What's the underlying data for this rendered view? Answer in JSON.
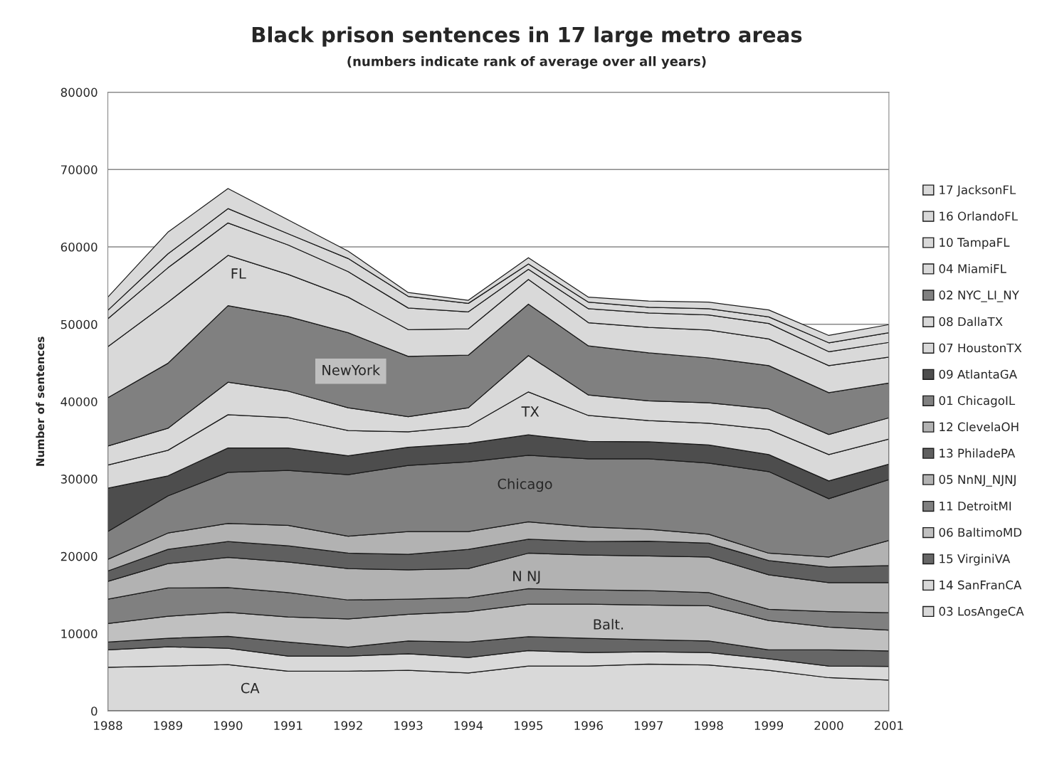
{
  "chart_data": {
    "type": "area",
    "stacked": true,
    "title": "Black prison sentences in 17 large metro areas",
    "subtitle": "(numbers indicate rank of average over all years)",
    "ylabel": "Number of sentences",
    "x": [
      1988,
      1989,
      1990,
      1991,
      1992,
      1993,
      1994,
      1995,
      1996,
      1997,
      1998,
      1999,
      2000,
      2001
    ],
    "xlim": [
      1988,
      2001
    ],
    "xticks": [
      1988,
      1989,
      1990,
      1991,
      1992,
      1993,
      1994,
      1995,
      1996,
      1997,
      1998,
      1999,
      2000,
      2001
    ],
    "ylim": [
      0,
      80000
    ],
    "yticks": [
      0,
      10000,
      20000,
      30000,
      40000,
      50000,
      60000,
      70000,
      80000
    ],
    "grid": "y",
    "legend": "right",
    "series": [
      {
        "name": "03 LosAngeCA",
        "color": "#d9d9d9",
        "values": [
          5650,
          5800,
          6000,
          5150,
          5150,
          5250,
          4900,
          5800,
          5800,
          6050,
          5950,
          5250,
          4300,
          4000
        ]
      },
      {
        "name": "14 SanFranCA",
        "color": "#d9d9d9",
        "values": [
          2250,
          2500,
          2100,
          1950,
          1950,
          2150,
          2000,
          2000,
          1750,
          1600,
          1600,
          1500,
          1500,
          1750
        ]
      },
      {
        "name": "15 VirginiVA",
        "color": "#666666",
        "values": [
          1000,
          1100,
          1550,
          1800,
          1150,
          1650,
          2000,
          1800,
          1850,
          1550,
          1500,
          1150,
          2100,
          2000
        ]
      },
      {
        "name": "06 BaltimoMD",
        "color": "#c0c0c0",
        "values": [
          2400,
          2850,
          3100,
          3250,
          3650,
          3450,
          3950,
          4200,
          4400,
          4500,
          4550,
          3800,
          2950,
          2700
        ]
      },
      {
        "name": "11 DetroitMI",
        "color": "#808080",
        "values": [
          3150,
          3650,
          3200,
          3150,
          2450,
          1950,
          1800,
          2000,
          1850,
          1850,
          1700,
          1450,
          2000,
          2250
        ]
      },
      {
        "name": "05 NnNJ_NJNJ",
        "color": "#b2b2b2",
        "values": [
          2300,
          3150,
          3900,
          3950,
          4050,
          3800,
          3750,
          4600,
          4500,
          4500,
          4600,
          4450,
          3750,
          3900
        ]
      },
      {
        "name": "13 PhiladePA",
        "color": "#5f5f5f",
        "values": [
          1350,
          1850,
          2050,
          2100,
          2000,
          2000,
          2500,
          1800,
          1750,
          1900,
          1800,
          1850,
          2000,
          2200
        ]
      },
      {
        "name": "12 ClevelaOH",
        "color": "#b2b2b2",
        "values": [
          1500,
          2100,
          2350,
          2650,
          2200,
          2950,
          2300,
          2250,
          1900,
          1550,
          1150,
          950,
          1300,
          3250
        ]
      },
      {
        "name": "01 ChicagoIL",
        "color": "#808080",
        "values": [
          3600,
          4800,
          6600,
          7100,
          7950,
          8550,
          9000,
          8600,
          8800,
          9100,
          9200,
          10550,
          7550,
          7850
        ]
      },
      {
        "name": "09 AtlantaGA",
        "color": "#4d4d4d",
        "values": [
          5600,
          2600,
          3150,
          2900,
          2450,
          2350,
          2400,
          2650,
          2250,
          2200,
          2350,
          2200,
          2300,
          2000
        ]
      },
      {
        "name": "07 HoustonTX",
        "color": "#d9d9d9",
        "values": [
          3000,
          3300,
          4300,
          3900,
          3250,
          2000,
          2200,
          5550,
          3350,
          2750,
          2800,
          3250,
          3400,
          3250
        ]
      },
      {
        "name": "08 DallaTX",
        "color": "#d9d9d9",
        "values": [
          2450,
          2850,
          4200,
          3450,
          2950,
          1950,
          2400,
          4700,
          2650,
          2550,
          2650,
          2650,
          2600,
          2750
        ]
      },
      {
        "name": "02 NYC_LI_NY",
        "color": "#808080",
        "values": [
          6250,
          8400,
          9900,
          9650,
          9700,
          7800,
          6800,
          6650,
          6350,
          6200,
          5800,
          5600,
          5400,
          4500
        ]
      },
      {
        "name": "04 MiamiFL",
        "color": "#d9d9d9",
        "values": [
          6600,
          7900,
          6500,
          5450,
          4600,
          3450,
          3400,
          3200,
          3000,
          3300,
          3600,
          3450,
          3500,
          3350
        ]
      },
      {
        "name": "10 TampaFL",
        "color": "#d9d9d9",
        "values": [
          3600,
          4450,
          4200,
          3800,
          3300,
          2800,
          2200,
          1300,
          1800,
          1850,
          1950,
          2000,
          1800,
          1900
        ]
      },
      {
        "name": "16 OrlandoFL",
        "color": "#d9d9d9",
        "values": [
          1100,
          1800,
          1850,
          1450,
          1700,
          1500,
          1100,
          700,
          850,
          750,
          800,
          850,
          1150,
          1250
        ]
      },
      {
        "name": "17 JacksonFL",
        "color": "#d9d9d9",
        "values": [
          1700,
          2800,
          2600,
          1800,
          950,
          500,
          400,
          800,
          650,
          800,
          850,
          900,
          950,
          1050
        ]
      }
    ],
    "annotations": [
      "FL",
      "NewYork",
      "TX",
      "Chicago",
      "N NJ",
      "Balt.",
      "CA"
    ]
  }
}
